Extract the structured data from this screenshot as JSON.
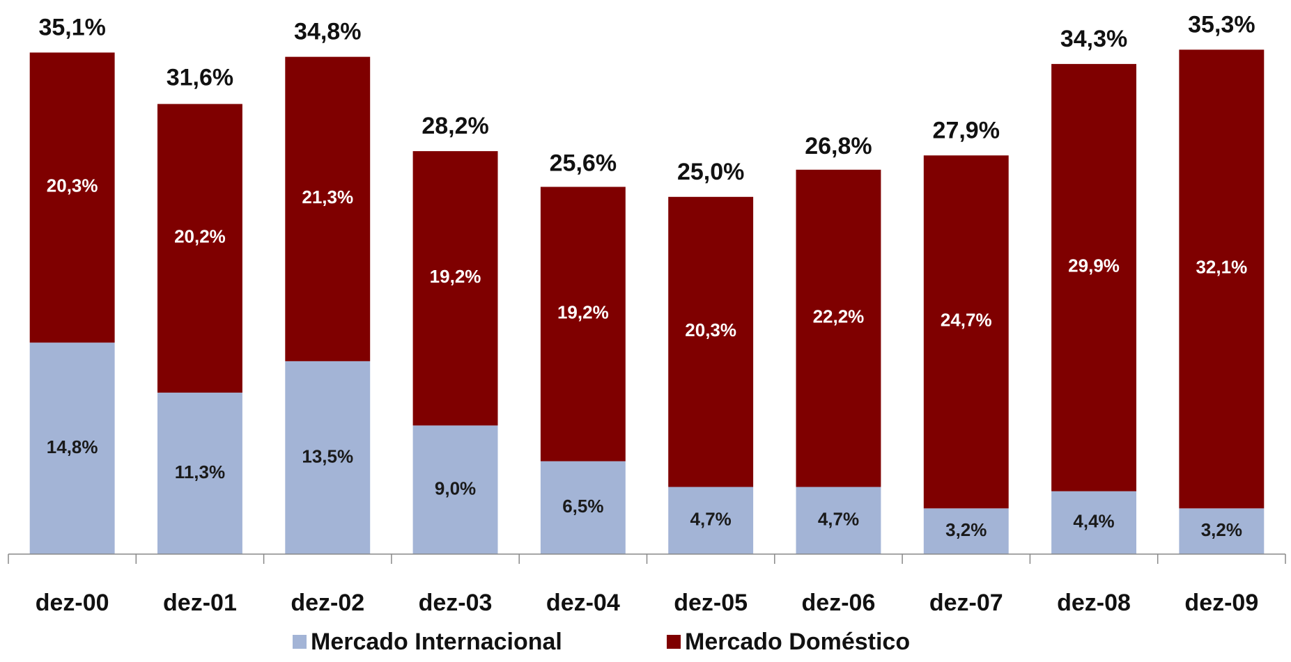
{
  "chart_data": {
    "type": "bar",
    "stacked": true,
    "categories": [
      "dez-00",
      "dez-01",
      "dez-02",
      "dez-03",
      "dez-04",
      "dez-05",
      "dez-06",
      "dez-07",
      "dez-08",
      "dez-09"
    ],
    "series": [
      {
        "name": "Mercado Internacional",
        "color": "#a3b4d6",
        "values": [
          14.8,
          11.3,
          13.5,
          9.0,
          6.5,
          4.7,
          4.7,
          3.2,
          4.4,
          3.2
        ],
        "value_labels": [
          "14,8%",
          "11,3%",
          "13,5%",
          "9,0%",
          "6,5%",
          "4,7%",
          "4,7%",
          "3,2%",
          "4,4%",
          "3,2%"
        ]
      },
      {
        "name": "Mercado Doméstico",
        "color": "#7f0000",
        "values": [
          20.3,
          20.2,
          21.3,
          19.2,
          19.2,
          20.3,
          22.2,
          24.7,
          29.9,
          32.1
        ],
        "value_labels": [
          "20,3%",
          "20,2%",
          "21,3%",
          "19,2%",
          "19,2%",
          "20,3%",
          "22,2%",
          "24,7%",
          "29,9%",
          "32,1%"
        ]
      }
    ],
    "totals": [
      35.1,
      31.6,
      34.8,
      28.2,
      25.6,
      25.0,
      26.8,
      27.9,
      34.3,
      35.3
    ],
    "total_labels": [
      "35,1%",
      "31,6%",
      "34,8%",
      "28,2%",
      "25,6%",
      "25,0%",
      "26,8%",
      "27,9%",
      "34,3%",
      "35,3%"
    ],
    "ylim": [
      0,
      36
    ],
    "legend": "bottom"
  }
}
